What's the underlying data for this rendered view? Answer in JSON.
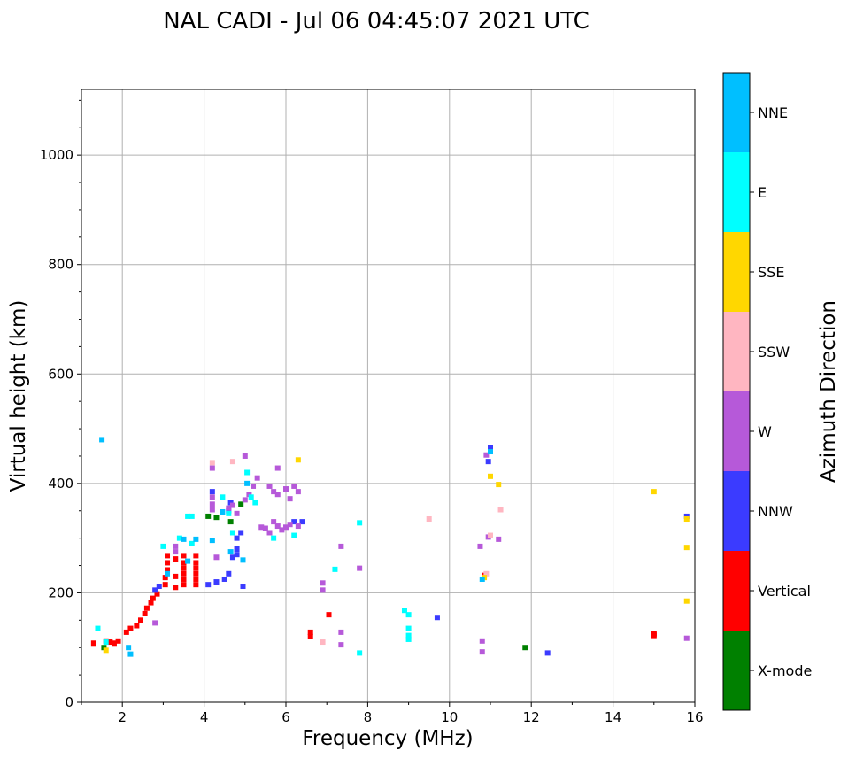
{
  "chart_data": {
    "type": "scatter",
    "title": "NAL CADI - Jul 06 04:45:07 2021 UTC",
    "xlabel": "Frequency (MHz)",
    "ylabel": "Virtual height (km)",
    "xlim": [
      1,
      16
    ],
    "ylim": [
      0,
      1120
    ],
    "xticks": [
      2,
      4,
      6,
      8,
      10,
      12,
      14,
      16
    ],
    "yticks": [
      0,
      200,
      400,
      600,
      800,
      1000
    ],
    "grid": true,
    "colorbar": {
      "label": "Azimuth Direction",
      "categories": [
        "X-mode",
        "Vertical",
        "NNW",
        "W",
        "SSW",
        "SSE",
        "E",
        "NNE"
      ],
      "colors": [
        "#008000",
        "#ff0000",
        "#3b3bff",
        "#b659d9",
        "#ffb6c1",
        "#ffd700",
        "#00ffff",
        "#00bfff"
      ]
    },
    "series": [
      {
        "name": "X-mode",
        "points": [
          [
            1.55,
            100
          ],
          [
            4.1,
            340
          ],
          [
            4.65,
            330
          ],
          [
            4.3,
            338
          ],
          [
            11.85,
            100
          ],
          [
            4.9,
            362
          ]
        ]
      },
      {
        "name": "Vertical",
        "points": [
          [
            1.3,
            108
          ],
          [
            1.6,
            112
          ],
          [
            1.7,
            110
          ],
          [
            1.8,
            108
          ],
          [
            1.9,
            112
          ],
          [
            2.1,
            128
          ],
          [
            2.2,
            135
          ],
          [
            2.35,
            140
          ],
          [
            2.45,
            150
          ],
          [
            2.55,
            162
          ],
          [
            2.6,
            172
          ],
          [
            2.7,
            182
          ],
          [
            2.75,
            190
          ],
          [
            2.85,
            198
          ],
          [
            3.05,
            215
          ],
          [
            3.05,
            228
          ],
          [
            3.1,
            242
          ],
          [
            3.1,
            255
          ],
          [
            3.1,
            268
          ],
          [
            3.3,
            210
          ],
          [
            3.3,
            230
          ],
          [
            3.3,
            262
          ],
          [
            3.5,
            215
          ],
          [
            3.5,
            225
          ],
          [
            3.5,
            235
          ],
          [
            3.5,
            245
          ],
          [
            3.5,
            255
          ],
          [
            3.5,
            268
          ],
          [
            3.8,
            215
          ],
          [
            3.8,
            225
          ],
          [
            3.8,
            235
          ],
          [
            3.8,
            245
          ],
          [
            3.8,
            255
          ],
          [
            3.8,
            268
          ],
          [
            6.6,
            120
          ],
          [
            6.6,
            128
          ],
          [
            7.05,
            160
          ],
          [
            10.85,
            232
          ],
          [
            15.0,
            122
          ],
          [
            15.0,
            126
          ],
          [
            15.0,
            124
          ]
        ]
      },
      {
        "name": "NNW",
        "points": [
          [
            2.8,
            205
          ],
          [
            2.9,
            212
          ],
          [
            4.1,
            215
          ],
          [
            4.3,
            220
          ],
          [
            4.5,
            225
          ],
          [
            4.6,
            235
          ],
          [
            4.7,
            265
          ],
          [
            4.8,
            270
          ],
          [
            4.8,
            280
          ],
          [
            4.8,
            300
          ],
          [
            4.9,
            310
          ],
          [
            4.95,
            212
          ],
          [
            4.2,
            385
          ],
          [
            4.6,
            350
          ],
          [
            4.65,
            365
          ],
          [
            6.4,
            330
          ],
          [
            6.2,
            330
          ],
          [
            10.95,
            440
          ],
          [
            11.0,
            465
          ],
          [
            9.7,
            155
          ],
          [
            12.4,
            90
          ],
          [
            15.8,
            340
          ]
        ]
      },
      {
        "name": "W",
        "points": [
          [
            4.2,
            375
          ],
          [
            4.2,
            362
          ],
          [
            4.2,
            352
          ],
          [
            4.2,
            428
          ],
          [
            4.6,
            355
          ],
          [
            4.7,
            360
          ],
          [
            4.8,
            345
          ],
          [
            5.0,
            370
          ],
          [
            5.1,
            380
          ],
          [
            5.2,
            395
          ],
          [
            5.3,
            410
          ],
          [
            5.4,
            320
          ],
          [
            5.5,
            318
          ],
          [
            5.6,
            310
          ],
          [
            5.7,
            330
          ],
          [
            5.8,
            322
          ],
          [
            5.9,
            315
          ],
          [
            6.0,
            320
          ],
          [
            6.1,
            325
          ],
          [
            6.3,
            322
          ],
          [
            5.6,
            395
          ],
          [
            5.7,
            385
          ],
          [
            5.8,
            380
          ],
          [
            6.0,
            390
          ],
          [
            6.2,
            395
          ],
          [
            6.3,
            385
          ],
          [
            6.1,
            372
          ],
          [
            5.8,
            428
          ],
          [
            5.0,
            450
          ],
          [
            4.3,
            265
          ],
          [
            3.3,
            275
          ],
          [
            3.3,
            285
          ],
          [
            2.8,
            145
          ],
          [
            7.35,
            285
          ],
          [
            7.35,
            128
          ],
          [
            7.35,
            105
          ],
          [
            7.8,
            245
          ],
          [
            6.9,
            218
          ],
          [
            6.9,
            205
          ],
          [
            10.9,
            452
          ],
          [
            10.95,
            302
          ],
          [
            10.75,
            285
          ],
          [
            11.2,
            298
          ],
          [
            10.8,
            112
          ],
          [
            10.8,
            92
          ],
          [
            15.8,
            117
          ]
        ]
      },
      {
        "name": "SSW",
        "points": [
          [
            4.2,
            438
          ],
          [
            4.7,
            440
          ],
          [
            6.9,
            110
          ],
          [
            9.5,
            335
          ],
          [
            10.9,
            235
          ],
          [
            11.0,
            305
          ],
          [
            11.25,
            352
          ]
        ]
      },
      {
        "name": "SSE",
        "points": [
          [
            1.6,
            95
          ],
          [
            6.3,
            443
          ],
          [
            11.2,
            398
          ],
          [
            11.0,
            413
          ],
          [
            10.85,
            228
          ],
          [
            15.0,
            385
          ],
          [
            15.8,
            335
          ],
          [
            15.8,
            283
          ],
          [
            15.8,
            185
          ]
        ]
      },
      {
        "name": "E",
        "points": [
          [
            1.4,
            135
          ],
          [
            1.6,
            110
          ],
          [
            3.0,
            285
          ],
          [
            3.4,
            300
          ],
          [
            3.6,
            340
          ],
          [
            3.7,
            340
          ],
          [
            3.7,
            290
          ],
          [
            4.45,
            375
          ],
          [
            4.6,
            345
          ],
          [
            4.7,
            310
          ],
          [
            5.05,
            420
          ],
          [
            5.15,
            375
          ],
          [
            5.25,
            365
          ],
          [
            5.7,
            300
          ],
          [
            6.2,
            305
          ],
          [
            7.2,
            243
          ],
          [
            7.8,
            328
          ],
          [
            7.8,
            90
          ],
          [
            8.9,
            168
          ],
          [
            9.0,
            160
          ],
          [
            9.0,
            135
          ],
          [
            9.0,
            122
          ],
          [
            9.0,
            115
          ]
        ]
      },
      {
        "name": "NNE",
        "points": [
          [
            1.5,
            480
          ],
          [
            2.2,
            88
          ],
          [
            2.15,
            100
          ],
          [
            3.1,
            235
          ],
          [
            3.5,
            298
          ],
          [
            3.6,
            258
          ],
          [
            3.8,
            298
          ],
          [
            4.2,
            296
          ],
          [
            4.45,
            348
          ],
          [
            4.65,
            275
          ],
          [
            4.95,
            260
          ],
          [
            5.05,
            400
          ],
          [
            11.0,
            458
          ],
          [
            10.8,
            225
          ]
        ]
      }
    ]
  }
}
